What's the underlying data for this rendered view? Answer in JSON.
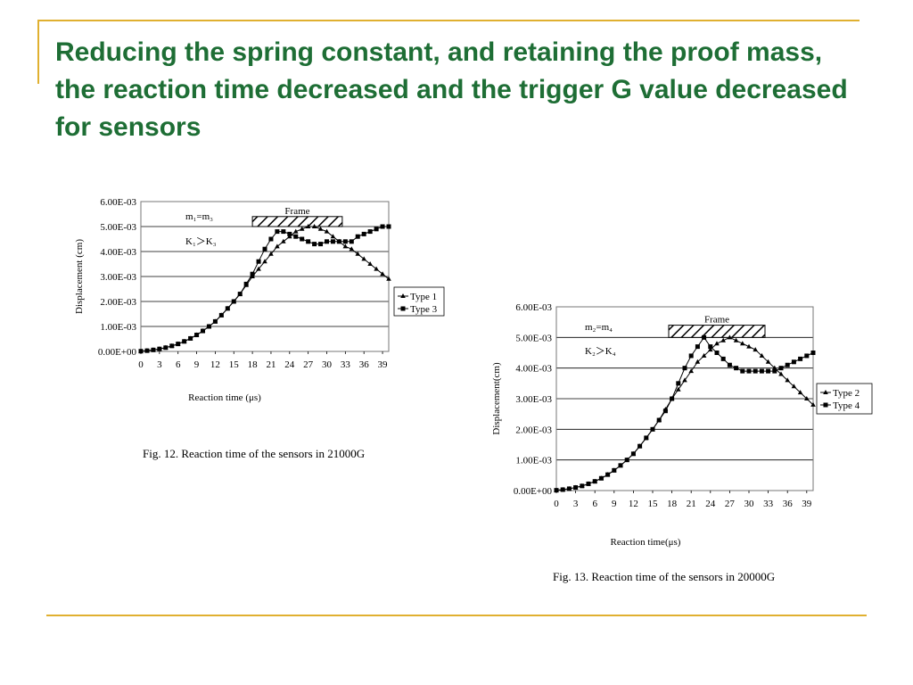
{
  "slide": {
    "title": "Reducing the spring constant, and retaining the proof mass, the reaction time decreased and the trigger G value decreased for sensors"
  },
  "chart_data": [
    {
      "type": "line",
      "title": "",
      "caption": "Fig. 12. Reaction time of the sensors in 21000G",
      "xlabel": "Reaction time (μs)",
      "ylabel": "Displacement (cm)",
      "xlim": [
        0,
        40
      ],
      "ylim": [
        0,
        0.006
      ],
      "x_ticks": [
        "0",
        "3",
        "6",
        "9",
        "12",
        "15",
        "18",
        "21",
        "24",
        "27",
        "30",
        "33",
        "36",
        "39"
      ],
      "y_ticks": [
        "0.00E+00",
        "1.00E-03",
        "2.00E-03",
        "3.00E-03",
        "4.00E-03",
        "5.00E-03",
        "6.00E-03"
      ],
      "annotations": {
        "frame_label": "Frame",
        "mass_label": "m₁=m₃",
        "k_label": "K₁＞K₃"
      },
      "legend_position": "right",
      "series": [
        {
          "name": "Type 1",
          "marker": "triangle",
          "x": [
            0,
            1,
            2,
            3,
            4,
            5,
            6,
            7,
            8,
            9,
            10,
            11,
            12,
            13,
            14,
            15,
            16,
            17,
            18,
            19,
            20,
            21,
            22,
            23,
            24,
            25,
            26,
            27,
            28,
            29,
            30,
            31,
            32,
            33,
            34,
            35,
            36,
            37,
            38,
            39,
            40
          ],
          "y": [
            1e-05,
            3e-05,
            6e-05,
            0.0001,
            0.00015,
            0.00022,
            0.0003,
            0.0004,
            0.00052,
            0.00066,
            0.00082,
            0.001,
            0.0012,
            0.00145,
            0.00172,
            0.002,
            0.0023,
            0.00265,
            0.003,
            0.0033,
            0.0036,
            0.0039,
            0.0042,
            0.0044,
            0.0046,
            0.0048,
            0.0049,
            0.005,
            0.005,
            0.0049,
            0.0048,
            0.0046,
            0.0044,
            0.0042,
            0.0041,
            0.0039,
            0.0037,
            0.0035,
            0.0033,
            0.0031,
            0.0029
          ]
        },
        {
          "name": "Type 3",
          "marker": "square",
          "x": [
            0,
            1,
            2,
            3,
            4,
            5,
            6,
            7,
            8,
            9,
            10,
            11,
            12,
            13,
            14,
            15,
            16,
            17,
            18,
            19,
            20,
            21,
            22,
            23,
            24,
            25,
            26,
            27,
            28,
            29,
            30,
            31,
            32,
            33,
            34,
            35,
            36,
            37,
            38,
            39,
            40
          ],
          "y": [
            1e-05,
            3e-05,
            6e-05,
            0.0001,
            0.00015,
            0.00022,
            0.0003,
            0.0004,
            0.00052,
            0.00066,
            0.00082,
            0.001,
            0.0012,
            0.00145,
            0.00172,
            0.002,
            0.0023,
            0.0027,
            0.0031,
            0.0036,
            0.0041,
            0.0045,
            0.0048,
            0.0048,
            0.0047,
            0.0046,
            0.0045,
            0.0044,
            0.0043,
            0.0043,
            0.0044,
            0.0044,
            0.0044,
            0.0044,
            0.0044,
            0.0046,
            0.0047,
            0.0048,
            0.0049,
            0.005,
            0.005
          ]
        }
      ]
    },
    {
      "type": "line",
      "title": "",
      "caption": "Fig. 13. Reaction time of the sensors in 20000G",
      "xlabel": "Reaction time(μs)",
      "ylabel": "Displacement(cm)",
      "xlim": [
        0,
        40
      ],
      "ylim": [
        0,
        0.006
      ],
      "x_ticks": [
        "0",
        "3",
        "6",
        "9",
        "12",
        "15",
        "18",
        "21",
        "24",
        "27",
        "30",
        "33",
        "36",
        "39"
      ],
      "y_ticks": [
        "0.00E+00",
        "1.00E-03",
        "2.00E-03",
        "3.00E-03",
        "4.00E-03",
        "5.00E-03",
        "6.00E-03"
      ],
      "annotations": {
        "frame_label": "Frame",
        "mass_label": "m₂=m₄",
        "k_label": "K₂＞K₄"
      },
      "legend_position": "right",
      "series": [
        {
          "name": "Type 2",
          "marker": "triangle",
          "x": [
            0,
            1,
            2,
            3,
            4,
            5,
            6,
            7,
            8,
            9,
            10,
            11,
            12,
            13,
            14,
            15,
            16,
            17,
            18,
            19,
            20,
            21,
            22,
            23,
            24,
            25,
            26,
            27,
            28,
            29,
            30,
            31,
            32,
            33,
            34,
            35,
            36,
            37,
            38,
            39,
            40
          ],
          "y": [
            1e-05,
            3e-05,
            6e-05,
            0.0001,
            0.00015,
            0.00022,
            0.0003,
            0.0004,
            0.00052,
            0.00066,
            0.00082,
            0.001,
            0.0012,
            0.00145,
            0.00172,
            0.002,
            0.0023,
            0.00265,
            0.003,
            0.0033,
            0.0036,
            0.0039,
            0.0042,
            0.0044,
            0.0046,
            0.0048,
            0.0049,
            0.005,
            0.0049,
            0.0048,
            0.0047,
            0.0046,
            0.0044,
            0.0042,
            0.004,
            0.0038,
            0.0036,
            0.0034,
            0.0032,
            0.003,
            0.0028
          ]
        },
        {
          "name": "Type 4",
          "marker": "square",
          "x": [
            0,
            1,
            2,
            3,
            4,
            5,
            6,
            7,
            8,
            9,
            10,
            11,
            12,
            13,
            14,
            15,
            16,
            17,
            18,
            19,
            20,
            21,
            22,
            23,
            24,
            25,
            26,
            27,
            28,
            29,
            30,
            31,
            32,
            33,
            34,
            35,
            36,
            37,
            38,
            39,
            40
          ],
          "y": [
            1e-05,
            3e-05,
            6e-05,
            0.0001,
            0.00015,
            0.00022,
            0.0003,
            0.0004,
            0.00052,
            0.00066,
            0.00082,
            0.001,
            0.0012,
            0.00145,
            0.00172,
            0.002,
            0.0023,
            0.0026,
            0.003,
            0.0035,
            0.004,
            0.0044,
            0.0047,
            0.005,
            0.0047,
            0.0045,
            0.0043,
            0.0041,
            0.004,
            0.0039,
            0.0039,
            0.0039,
            0.0039,
            0.0039,
            0.0039,
            0.004,
            0.0041,
            0.0042,
            0.0043,
            0.0044,
            0.0045
          ]
        }
      ]
    }
  ]
}
